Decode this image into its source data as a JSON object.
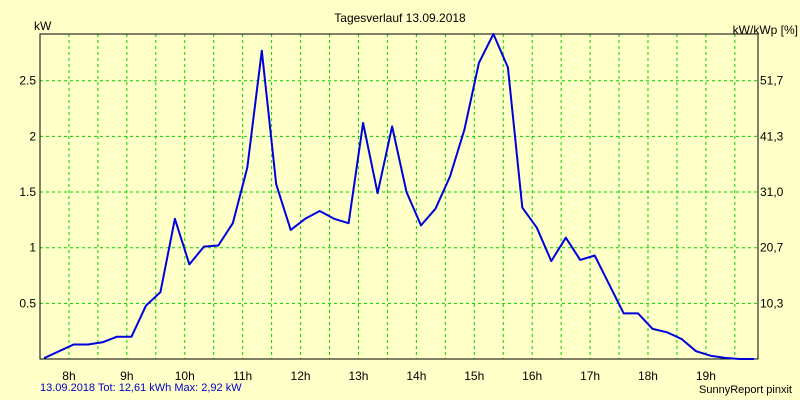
{
  "chart_data": {
    "type": "line",
    "title": "Tagesverlauf 13.09.2018",
    "ylabel": "kW",
    "ylabel_right": "kW/kWp [%]",
    "ylim": [
      0,
      2.92
    ],
    "y_ticks": [
      "0.5",
      "1",
      "1.5",
      "2",
      "2.5"
    ],
    "y_right_ticks": [
      "10,3",
      "20,7",
      "31,0",
      "41,3",
      "51,7"
    ],
    "x_ticks": [
      "8h",
      "9h",
      "10h",
      "11h",
      "12h",
      "13h",
      "14h",
      "15h",
      "16h",
      "17h",
      "18h",
      "19h"
    ],
    "grid": true,
    "line_color": "#0000dc",
    "grid_color": "#00d200",
    "background": "#ffffc8",
    "series": [
      {
        "x": [
          7.58,
          7.83,
          8.08,
          8.33,
          8.58,
          8.83,
          9.08,
          9.33,
          9.58,
          9.83,
          10.08,
          10.33,
          10.58,
          10.83,
          11.08,
          11.33,
          11.58,
          11.83,
          12.08,
          12.33,
          12.58,
          12.83,
          13.08,
          13.33,
          13.58,
          13.83,
          14.08,
          14.33,
          14.58,
          14.83,
          15.08,
          15.33,
          15.58,
          15.83,
          16.08,
          16.33,
          16.58,
          16.83,
          17.08,
          17.33,
          17.58,
          17.83,
          18.08,
          18.33,
          18.58,
          18.83,
          19.08,
          19.33,
          19.58,
          19.83
        ],
        "values": [
          0.01,
          0.07,
          0.13,
          0.13,
          0.15,
          0.2,
          0.2,
          0.48,
          0.6,
          1.26,
          0.85,
          1.01,
          1.02,
          1.22,
          1.72,
          2.77,
          1.57,
          1.16,
          1.26,
          1.33,
          1.26,
          1.22,
          2.12,
          1.49,
          2.09,
          1.5,
          1.2,
          1.35,
          1.64,
          2.06,
          2.66,
          2.92,
          2.62,
          1.36,
          1.18,
          0.88,
          1.09,
          0.89,
          0.93,
          0.67,
          0.41,
          0.41,
          0.27,
          0.24,
          0.18,
          0.07,
          0.03,
          0.01,
          0.0,
          0.0
        ]
      }
    ]
  },
  "footer": {
    "left": "13.09.2018 Tot: 12,61 kWh Max: 2,92 kW",
    "right": "SunnyReport pinxit"
  }
}
